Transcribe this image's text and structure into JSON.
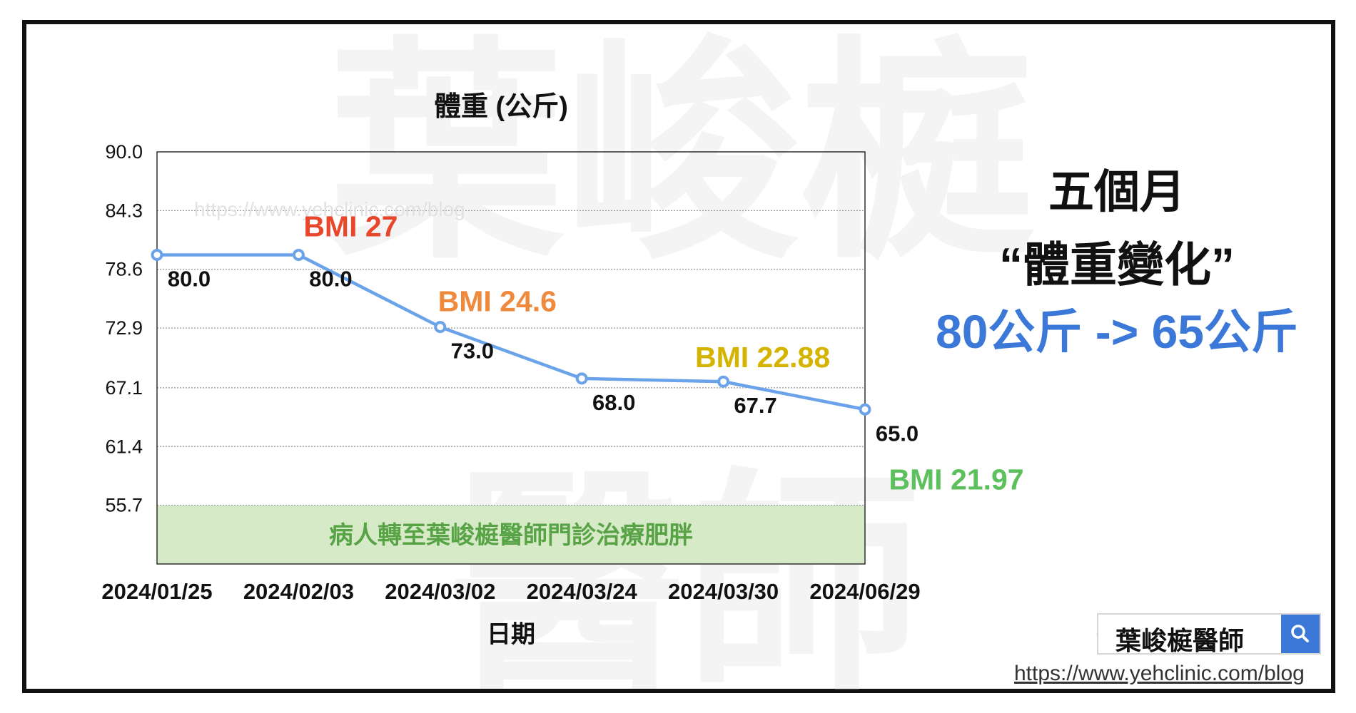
{
  "chart_data": {
    "type": "line",
    "title": "體重 (公斤)",
    "xlabel": "日期",
    "ylabel": "",
    "categories": [
      "2024/01/25",
      "2024/02/03",
      "2024/03/02",
      "2024/03/24",
      "2024/03/30",
      "2024/06/29"
    ],
    "series": [
      {
        "values": [
          80.0,
          80.0,
          73.0,
          68.0,
          67.7,
          65.0
        ],
        "color": "#6ba3ea"
      }
    ],
    "value_labels": [
      "80.0",
      "80.0",
      "73.0",
      "68.0",
      "67.7",
      "65.0"
    ],
    "y_ticks": [
      "90.0",
      "84.3",
      "78.6",
      "72.9",
      "67.1",
      "61.4",
      "55.7"
    ],
    "ylim": [
      50.0,
      90.0
    ],
    "grid": true,
    "bmi_annotations": [
      {
        "text": "BMI 27",
        "color": "#e8472b"
      },
      {
        "text": "BMI 24.6",
        "color": "#ef8a3c"
      },
      {
        "text": "BMI 22.88",
        "color": "#d4b400"
      },
      {
        "text": "BMI 21.97",
        "color": "#5cc05c"
      }
    ],
    "band": {
      "text": "病人轉至葉峻榳醫師門診治療肥胖",
      "from": 50.0,
      "to": 55.7,
      "fill": "#d7eac7",
      "text_color": "#58a346"
    }
  },
  "side_text": {
    "line1": "五個月",
    "line2": "“體重變化”",
    "line3": "80公斤 -> 65公斤"
  },
  "watermark": {
    "top": "葉峻榳",
    "bottom": "醫師",
    "inline": "https://www.yehclinic.com/blog"
  },
  "search_badge": {
    "text": "葉峻榳醫師",
    "icon": "search-icon",
    "logo": "google-logo-icon"
  },
  "footer_url": "https://www.yehclinic.com/blog"
}
